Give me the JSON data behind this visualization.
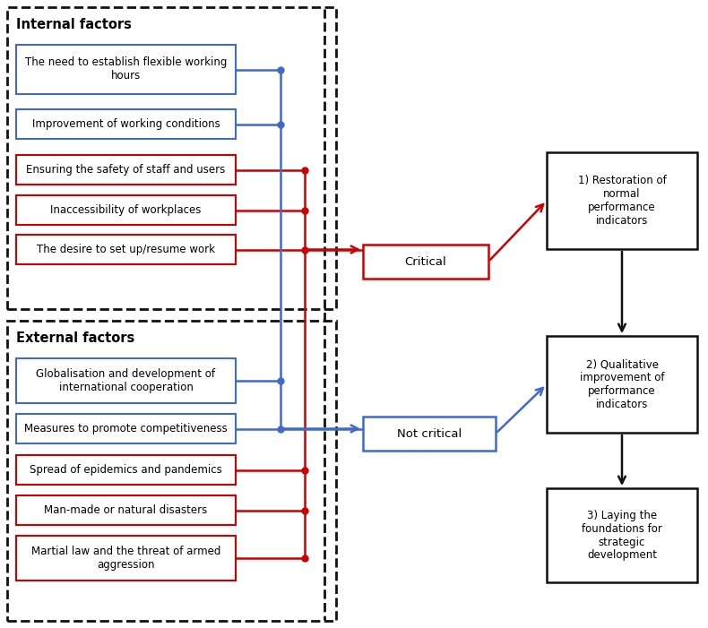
{
  "internal_factors_label": "Internal factors",
  "external_factors_label": "External factors",
  "blue_boxes_internal": [
    "The need to establish flexible working\nhours",
    "Improvement of working conditions"
  ],
  "red_boxes_internal": [
    "Ensuring the safety of staff and users",
    "Inaccessibility of workplaces",
    "The desire to set up/resume work"
  ],
  "blue_boxes_external": [
    "Globalisation and development of\ninternational cooperation",
    "Measures to promote competitiveness"
  ],
  "red_boxes_external": [
    "Spread of epidemics and pandemics",
    "Man-made or natural disasters",
    "Martial law and the threat of armed\naggression"
  ],
  "critical_label": "Critical",
  "not_critical_label": "Not critical",
  "result_boxes": [
    "1) Restoration of\nnormal\nperformance\nindicators",
    "2) Qualitative\nimprovement of\nperformance\nindicators",
    "3) Laying the\nfoundations for\nstrategic\ndevelopment"
  ],
  "blue_color": "#4169c8",
  "red_color": "#cc0000",
  "black_color": "#111111",
  "bg_color": "#ffffff",
  "fontsize": 8.5,
  "title_fontsize": 10.5
}
